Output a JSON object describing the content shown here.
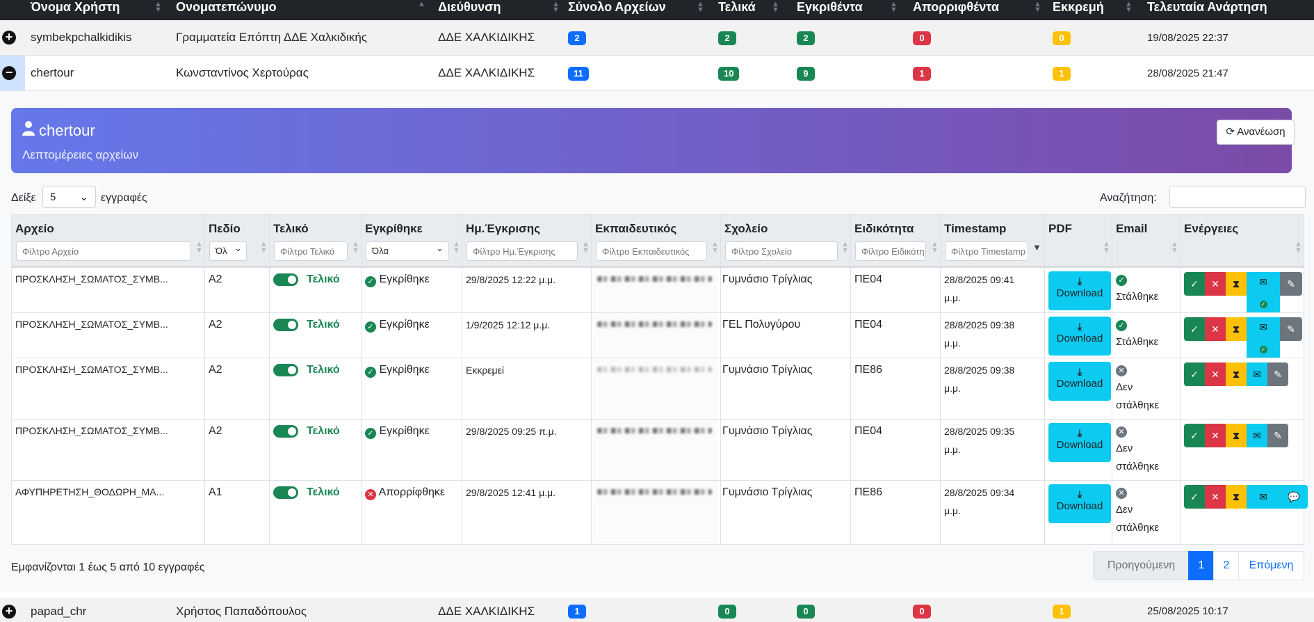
{
  "outer_header": [
    "Όνομα Χρήστη",
    "Ονοματεπώνυμο",
    "Διεύθυνση",
    "Σύνολο Αρχείων",
    "Τελικά",
    "Εγκριθέντα",
    "Απορριφθέντα",
    "Εκκρεμή",
    "Τελευταία Ανάρτηση"
  ],
  "users": [
    {
      "username": "symbekpchalkidikis",
      "fullname": "Γραμματεία Επόπτη ΔΔΕ Χαλκιδικής",
      "direction": "ΔΔΕ ΧΑΛΚΙΔΙΚΗΣ",
      "total": "2",
      "final": "2",
      "approved": "2",
      "rejected": "0",
      "pending": "0",
      "last": "19/08/2025 22:37",
      "toggle": "+"
    },
    {
      "username": "chertour",
      "fullname": "Κωνσταντίνος Χερτούρας",
      "direction": "ΔΔΕ ΧΑΛΚΙΔΙΚΗΣ",
      "total": "11",
      "final": "10",
      "approved": "9",
      "rejected": "1",
      "pending": "1",
      "last": "28/08/2025 21:47",
      "toggle": "−"
    },
    {
      "username": "papad_chr",
      "fullname": "Χρήστος Παπαδόπουλος",
      "direction": "ΔΔΕ ΧΑΛΚΙΔΙΚΗΣ",
      "total": "1",
      "final": "0",
      "approved": "0",
      "rejected": "0",
      "pending": "1",
      "last": "25/08/2025 10:17",
      "toggle": "+"
    }
  ],
  "detail": {
    "user": "chertour",
    "subtitle": "Λεπτομέρειες αρχείων",
    "refresh": "Ανανέωση",
    "show_prefix": "Δείξε",
    "show_value": "5",
    "show_suffix": "εγγραφές",
    "search_label": "Αναζήτηση:",
    "columns": [
      "Αρχείο",
      "Πεδίο",
      "Τελικό",
      "Εγκρίθηκε",
      "Ημ.Έγκρισης",
      "Εκπαιδευτικός",
      "Σχολείο",
      "Ειδικότητα",
      "Timestamp",
      "PDF",
      "Email",
      "Ενέργειες"
    ],
    "filters": [
      "Φίλτρο Αρχείο",
      "Όλ",
      "Φίλτρο Τελικό",
      "Όλα",
      "Φίλτρο Ημ.Έγκρισης",
      "Φίλτρο Εκπαιδευτικός",
      "Φίλτρο Σχολείο",
      "Φίλτρο Ειδικότητα",
      "Φίλτρο Timestamp"
    ],
    "rows": [
      {
        "file": "ΠΡΟΣΚΛΗΣΗ_ΣΩΜΑΤΟΣ_ΣΥΜΒ...",
        "field": "Α2",
        "final": "Τελικό",
        "approved": "Εγκρίθηκε",
        "approved_state": "ok",
        "date": "29/8/2025 12:22 μ.μ.",
        "school": "Γυμνάσιο Τρίγλιας",
        "specialty": "ΠΕ04",
        "ts1": "28/8/2025 09:41",
        "ts2": "μ.μ.",
        "download": "Download",
        "email1": "Στάλθηκε",
        "email2": "",
        "email_state": "ok"
      },
      {
        "file": "ΠΡΟΣΚΛΗΣΗ_ΣΩΜΑΤΟΣ_ΣΥΜΒ...",
        "field": "Α2",
        "final": "Τελικό",
        "approved": "Εγκρίθηκε",
        "approved_state": "ok",
        "date": "1/9/2025 12:12 μ.μ.",
        "school": "ΓΕL Πολυγύρου",
        "specialty": "ΠΕ04",
        "ts1": "28/8/2025 09:38",
        "ts2": "μ.μ.",
        "download": "Download",
        "email1": "Στάλθηκε",
        "email2": "",
        "email_state": "ok"
      },
      {
        "file": "ΠΡΟΣΚΛΗΣΗ_ΣΩΜΑΤΟΣ_ΣΥΜΒ...",
        "field": "Α2",
        "final": "Τελικό",
        "approved": "Εγκρίθηκε",
        "approved_state": "ok",
        "date": "Εκκρεμεί",
        "school": "Γυμνάσιο Τρίγλιας",
        "specialty": "ΠΕ86",
        "ts1": "28/8/2025 09:38",
        "ts2": "μ.μ.",
        "download": "Download",
        "email1": "Δεν",
        "email2": "στάλθηκε",
        "email_state": "no"
      },
      {
        "file": "ΠΡΟΣΚΛΗΣΗ_ΣΩΜΑΤΟΣ_ΣΥΜΒ...",
        "field": "Α2",
        "final": "Τελικό",
        "approved": "Εγκρίθηκε",
        "approved_state": "ok",
        "date": "29/8/2025 09:25 π.μ.",
        "school": "Γυμνάσιο Τρίγλιας",
        "specialty": "ΠΕ04",
        "ts1": "28/8/2025 09:35",
        "ts2": "μ.μ.",
        "download": "Download",
        "email1": "Δεν",
        "email2": "στάλθηκε",
        "email_state": "no"
      },
      {
        "file": "ΑΦΥΠΗΡΕΤΗΣΗ_ΘΟΔΩΡΗ_ΜΑ...",
        "field": "Α1",
        "final": "Τελικό",
        "approved": "Απορρίφθηκε",
        "approved_state": "rejected",
        "date": "29/8/2025 12:41 μ.μ.",
        "school": "Γυμνάσιο Τρίγλιας",
        "specialty": "ΠΕ86",
        "ts1": "28/8/2025 09:34",
        "ts2": "μ.μ.",
        "download": "Download",
        "email1": "Δεν",
        "email2": "στάλθηκε",
        "email_state": "no"
      }
    ],
    "info": "Εμφανίζονται 1 έως 5 από 10 εγγραφές",
    "pager": {
      "prev": "Προηγούμενη",
      "p1": "1",
      "p2": "2",
      "next": "Επόμενη"
    }
  }
}
